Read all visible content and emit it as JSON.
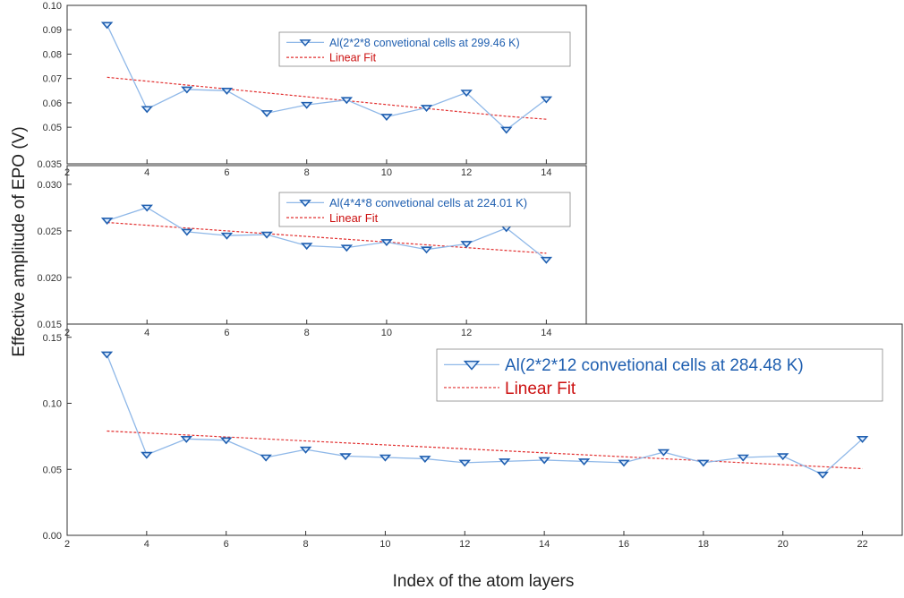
{
  "figure": {
    "ylabel": "Effective amplitude of EPO (V)",
    "xlabel": "Index of the atom layers",
    "colors": {
      "series": "#1f5fb0",
      "series_line": "#8fb8e8",
      "fit": "#e23030",
      "legend_text_series": "#1f5fb0",
      "legend_text_fit": "#cc1111"
    }
  },
  "chart_data": [
    {
      "type": "line",
      "xlim": [
        2,
        15
      ],
      "ylim": [
        0.035,
        0.1
      ],
      "xticks": [
        "2",
        "4",
        "6",
        "8",
        "10",
        "12",
        "14"
      ],
      "yticks": [
        "0.035",
        "0.05",
        "0.06",
        "0.07",
        "0.08",
        "0.09",
        "0.10"
      ],
      "ytick_values": [
        0.035,
        0.05,
        0.06,
        0.07,
        0.08,
        0.09,
        0.1
      ],
      "legend_position": "top-right",
      "x": [
        3,
        4,
        5,
        6,
        7,
        8,
        9,
        10,
        11,
        12,
        13,
        14
      ],
      "series": [
        {
          "name": "Al(2*2*8 convetional cells at 299.46 K)",
          "values": [
            0.092,
            0.0575,
            0.0655,
            0.065,
            0.0558,
            0.0592,
            0.0612,
            0.0543,
            0.058,
            0.0642,
            0.049,
            0.0615
          ]
        },
        {
          "name": "Linear Fit",
          "values": [
            0.0705,
            0.0689,
            0.0673,
            0.0657,
            0.0641,
            0.0625,
            0.0609,
            0.0593,
            0.0577,
            0.0561,
            0.0545,
            0.0533
          ]
        }
      ]
    },
    {
      "type": "line",
      "xlim": [
        2,
        15
      ],
      "ylim": [
        0.015,
        0.032
      ],
      "xticks": [
        "2",
        "4",
        "6",
        "8",
        "10",
        "12",
        "14"
      ],
      "yticks": [
        "0.015",
        "0.020",
        "0.025",
        "0.030"
      ],
      "ytick_values": [
        0.015,
        0.02,
        0.025,
        0.03
      ],
      "legend_position": "top-right",
      "x": [
        3,
        4,
        5,
        6,
        7,
        8,
        9,
        10,
        11,
        12,
        13,
        14
      ],
      "series": [
        {
          "name": "Al(4*4*8 convetional cells at 224.01 K)",
          "values": [
            0.0261,
            0.0275,
            0.0249,
            0.0245,
            0.0246,
            0.0234,
            0.0232,
            0.0238,
            0.023,
            0.0236,
            0.0253,
            0.0219
          ]
        },
        {
          "name": "Linear Fit",
          "values": [
            0.0259,
            0.0256,
            0.0253,
            0.025,
            0.0247,
            0.0244,
            0.0241,
            0.0238,
            0.0235,
            0.0232,
            0.0229,
            0.0226
          ]
        }
      ]
    },
    {
      "type": "line",
      "xlim": [
        2,
        23
      ],
      "ylim": [
        0,
        0.16
      ],
      "xticks": [
        "2",
        "4",
        "6",
        "8",
        "10",
        "12",
        "14",
        "16",
        "18",
        "20",
        "22"
      ],
      "yticks": [
        "0.00",
        "0.05",
        "0.10",
        "0.15"
      ],
      "ytick_values": [
        0,
        0.05,
        0.1,
        0.15
      ],
      "legend_position": "top-right",
      "x": [
        3,
        4,
        5,
        6,
        7,
        8,
        9,
        10,
        11,
        12,
        13,
        14,
        15,
        16,
        17,
        18,
        19,
        20,
        21,
        22
      ],
      "series": [
        {
          "name": "Al(2*2*12 convetional cells at 284.48 K)",
          "values": [
            0.137,
            0.061,
            0.073,
            0.072,
            0.059,
            0.065,
            0.06,
            0.059,
            0.058,
            0.055,
            0.056,
            0.057,
            0.056,
            0.055,
            0.063,
            0.055,
            0.059,
            0.06,
            0.046,
            0.073
          ]
        },
        {
          "name": "Linear Fit",
          "values": [
            0.079,
            0.0775,
            0.076,
            0.0745,
            0.073,
            0.0715,
            0.07,
            0.0685,
            0.067,
            0.0655,
            0.064,
            0.0625,
            0.061,
            0.0595,
            0.058,
            0.0565,
            0.055,
            0.0535,
            0.052,
            0.0505
          ]
        }
      ]
    }
  ]
}
